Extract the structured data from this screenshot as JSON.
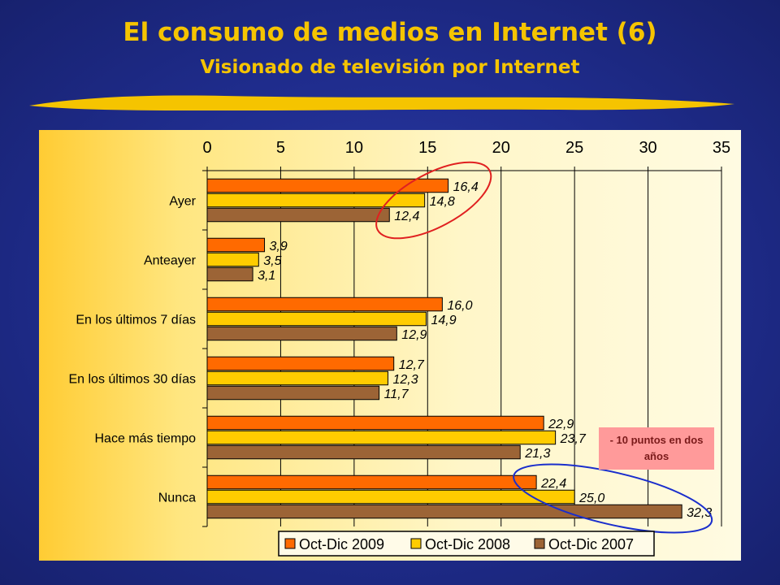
{
  "slide": {
    "title": "El consumo de medios en Internet (6)",
    "subtitle": "Visionado de televisión por Internet",
    "callout": "- 10 puntos en dos años"
  },
  "colors": {
    "background": "#1f2c8c",
    "title": "#f5c400",
    "series": [
      "#ff6a00",
      "#ffcc00",
      "#9c6436"
    ],
    "highlight_red": "#e02020",
    "highlight_blue": "#1a2ecc"
  },
  "chart_data": {
    "type": "bar",
    "orientation": "horizontal",
    "categories": [
      "Ayer",
      "Anteayer",
      "En los últimos 7 días",
      "En los últimos 30 días",
      "Hace más tiempo",
      "Nunca"
    ],
    "series": [
      {
        "name": "Oct-Dic 2009",
        "values": [
          16.4,
          3.9,
          16.0,
          12.7,
          22.9,
          22.4
        ],
        "labels": [
          "16,4",
          "3,9",
          "16,0",
          "12,7",
          "22,9",
          "22,4"
        ]
      },
      {
        "name": "Oct-Dic 2008",
        "values": [
          14.8,
          3.5,
          14.9,
          12.3,
          23.7,
          25.0
        ],
        "labels": [
          "14,8",
          "3,5",
          "14,9",
          "12,3",
          "23,7",
          "25,0"
        ]
      },
      {
        "name": "Oct-Dic 2007",
        "values": [
          12.4,
          3.1,
          12.9,
          11.7,
          21.3,
          32.3
        ],
        "labels": [
          "12,4",
          "3,1",
          "12,9",
          "11,7",
          "21,3",
          "32,3"
        ]
      }
    ],
    "xlim": [
      0,
      35
    ],
    "ticks": [
      "0",
      "5",
      "10",
      "15",
      "20",
      "25",
      "30",
      "35"
    ],
    "tick_values": [
      0,
      5,
      10,
      15,
      20,
      25,
      30,
      35
    ],
    "axis_position": "top",
    "grid": true,
    "legend_position": "bottom",
    "highlights": [
      {
        "category": "Ayer",
        "color": "red"
      },
      {
        "category": "Nunca",
        "color": "blue"
      }
    ]
  }
}
